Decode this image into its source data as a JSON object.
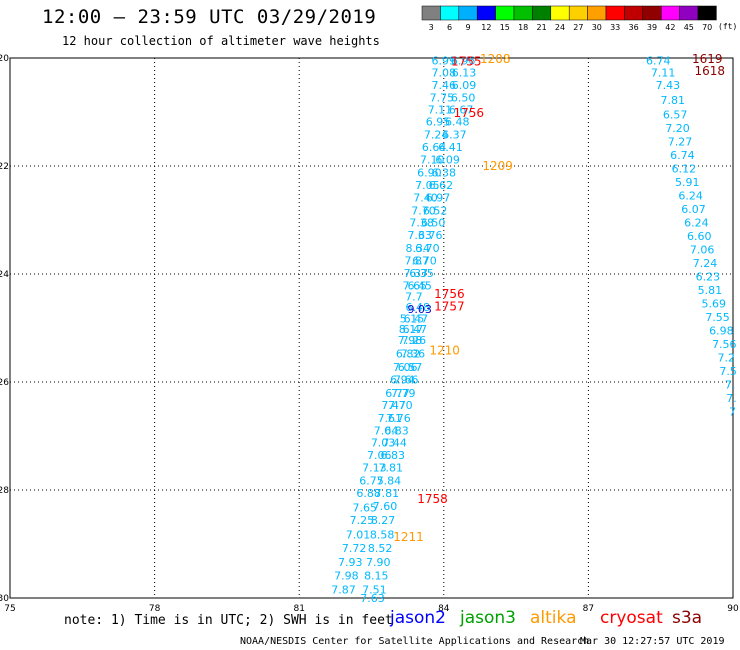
{
  "header": {
    "title": "12:00 – 23:59 UTC 03/29/2019",
    "subtitle": "12 hour collection of altimeter wave heights"
  },
  "colorbar": {
    "labels": [
      "3",
      "6",
      "9",
      "12",
      "15",
      "18",
      "21",
      "24",
      "27",
      "30",
      "33",
      "36",
      "39",
      "42",
      "45",
      "70"
    ],
    "unit": "(ft)",
    "colors": [
      "#808080",
      "#00ffff",
      "#00b0ff",
      "#0000ff",
      "#00ff00",
      "#00c000",
      "#008000",
      "#ffff00",
      "#ffd000",
      "#ffa000",
      "#ff0000",
      "#c00000",
      "#900000",
      "#ff00ff",
      "#9000c0",
      "#000000"
    ]
  },
  "chart_data": {
    "type": "scatter",
    "xlim": [
      75,
      90
    ],
    "ylim": [
      -30,
      -20
    ],
    "xticks": [
      "75",
      "78",
      "81",
      "84",
      "87",
      "90"
    ],
    "yticks": [
      "-20",
      "-22",
      "-24",
      "-26",
      "-28",
      "-30"
    ],
    "grid": true,
    "colors": {
      "jason2": "#0000ff",
      "jason3": "#00a000",
      "altika": "#ff9900",
      "cryosat": "#ff0000",
      "s3a": "#8b0000",
      "swh": "#00b8ff"
    },
    "swh_points": [
      {
        "x": 84.0,
        "y": -20.05,
        "v": "6.99"
      },
      {
        "x": 84.0,
        "y": -20.27,
        "v": "7.08"
      },
      {
        "x": 84.0,
        "y": -20.5,
        "v": "7.46"
      },
      {
        "x": 83.96,
        "y": -20.73,
        "v": "7.75"
      },
      {
        "x": 83.92,
        "y": -20.95,
        "v": "7.11"
      },
      {
        "x": 83.88,
        "y": -21.18,
        "v": "6.95"
      },
      {
        "x": 83.84,
        "y": -21.42,
        "v": "7.24"
      },
      {
        "x": 83.8,
        "y": -21.65,
        "v": "6.64"
      },
      {
        "x": 83.76,
        "y": -21.88,
        "v": "7.10"
      },
      {
        "x": 83.7,
        "y": -22.12,
        "v": "6.90"
      },
      {
        "x": 83.66,
        "y": -22.35,
        "v": "7.05"
      },
      {
        "x": 83.62,
        "y": -22.58,
        "v": "7.40"
      },
      {
        "x": 83.58,
        "y": -22.82,
        "v": "7.70"
      },
      {
        "x": 83.54,
        "y": -23.05,
        "v": "7.38"
      },
      {
        "x": 83.5,
        "y": -23.28,
        "v": "7.33"
      },
      {
        "x": 83.46,
        "y": -23.52,
        "v": "8.34"
      },
      {
        "x": 83.44,
        "y": -23.75,
        "v": "7.87"
      },
      {
        "x": 83.42,
        "y": -23.98,
        "v": "7.37"
      },
      {
        "x": 83.4,
        "y": -24.21,
        "v": "7.65"
      },
      {
        "x": 83.38,
        "y": -24.42,
        "v": "7.7"
      },
      {
        "x": 83.34,
        "y": -24.82,
        "v": "5.15"
      },
      {
        "x": 83.32,
        "y": -25.02,
        "v": "8.17"
      },
      {
        "x": 83.3,
        "y": -25.22,
        "v": "7.98"
      },
      {
        "x": 83.26,
        "y": -25.47,
        "v": "6.82"
      },
      {
        "x": 83.2,
        "y": -25.72,
        "v": "7.06"
      },
      {
        "x": 83.14,
        "y": -25.95,
        "v": "6.94"
      },
      {
        "x": 83.04,
        "y": -26.2,
        "v": "6.77"
      },
      {
        "x": 82.96,
        "y": -26.43,
        "v": "7.47"
      },
      {
        "x": 82.88,
        "y": -26.67,
        "v": "7.61"
      },
      {
        "x": 82.8,
        "y": -26.9,
        "v": "7.04"
      },
      {
        "x": 82.74,
        "y": -27.12,
        "v": "7.03"
      },
      {
        "x": 82.66,
        "y": -27.35,
        "v": "7.06"
      },
      {
        "x": 82.56,
        "y": -27.58,
        "v": "7.13"
      },
      {
        "x": 82.5,
        "y": -27.82,
        "v": "6.75"
      },
      {
        "x": 82.44,
        "y": -28.06,
        "v": "6.88"
      },
      {
        "x": 82.36,
        "y": -28.32,
        "v": "7.65"
      },
      {
        "x": 82.3,
        "y": -28.56,
        "v": "7.25"
      },
      {
        "x": 82.22,
        "y": -28.82,
        "v": "7.01"
      },
      {
        "x": 82.14,
        "y": -29.07,
        "v": "7.72"
      },
      {
        "x": 82.06,
        "y": -29.33,
        "v": "7.93"
      },
      {
        "x": 81.98,
        "y": -29.58,
        "v": "7.98"
      },
      {
        "x": 81.92,
        "y": -29.84,
        "v": "7.87"
      },
      {
        "x": 84.4,
        "y": -20.05,
        "v": "6.96"
      },
      {
        "x": 84.42,
        "y": -20.27,
        "v": "6.13"
      },
      {
        "x": 84.42,
        "y": -20.5,
        "v": "6.09"
      },
      {
        "x": 84.4,
        "y": -20.73,
        "v": "6.50"
      },
      {
        "x": 84.36,
        "y": -20.95,
        "v": "6.67"
      },
      {
        "x": 84.28,
        "y": -21.18,
        "v": "6.48"
      },
      {
        "x": 84.22,
        "y": -21.42,
        "v": "6.37"
      },
      {
        "x": 84.14,
        "y": -21.65,
        "v": "6.41"
      },
      {
        "x": 84.08,
        "y": -21.88,
        "v": "6.09"
      },
      {
        "x": 84.0,
        "y": -22.12,
        "v": "6.38"
      },
      {
        "x": 83.94,
        "y": -22.35,
        "v": "6.62"
      },
      {
        "x": 83.88,
        "y": -22.58,
        "v": "6.97"
      },
      {
        "x": 83.82,
        "y": -22.82,
        "v": "6.52"
      },
      {
        "x": 83.78,
        "y": -23.05,
        "v": "6.50"
      },
      {
        "x": 83.72,
        "y": -23.28,
        "v": "6.76"
      },
      {
        "x": 83.66,
        "y": -23.52,
        "v": "6.70"
      },
      {
        "x": 83.6,
        "y": -23.75,
        "v": "6.70"
      },
      {
        "x": 83.54,
        "y": -23.98,
        "v": "6.35"
      },
      {
        "x": 83.5,
        "y": -24.21,
        "v": "6.45"
      },
      {
        "x": 83.46,
        "y": -24.61,
        "v": "6.48"
      },
      {
        "x": 83.42,
        "y": -24.82,
        "v": "6.47"
      },
      {
        "x": 83.4,
        "y": -25.02,
        "v": "6.47"
      },
      {
        "x": 83.38,
        "y": -25.22,
        "v": "7.26"
      },
      {
        "x": 83.36,
        "y": -25.47,
        "v": "7.36"
      },
      {
        "x": 83.3,
        "y": -25.72,
        "v": "6.57"
      },
      {
        "x": 83.22,
        "y": -25.95,
        "v": "7.66"
      },
      {
        "x": 83.16,
        "y": -26.2,
        "v": "7.79"
      },
      {
        "x": 83.1,
        "y": -26.43,
        "v": "7.70"
      },
      {
        "x": 83.06,
        "y": -26.67,
        "v": "7.76"
      },
      {
        "x": 83.02,
        "y": -26.9,
        "v": "6.83"
      },
      {
        "x": 82.98,
        "y": -27.12,
        "v": "7.44"
      },
      {
        "x": 82.94,
        "y": -27.35,
        "v": "6.83"
      },
      {
        "x": 82.9,
        "y": -27.58,
        "v": "7.81"
      },
      {
        "x": 82.86,
        "y": -27.82,
        "v": "7.84"
      },
      {
        "x": 82.82,
        "y": -28.06,
        "v": "7.81"
      },
      {
        "x": 82.78,
        "y": -28.3,
        "v": "7.60"
      },
      {
        "x": 82.74,
        "y": -28.56,
        "v": "8.27"
      },
      {
        "x": 82.72,
        "y": -28.82,
        "v": "8.58"
      },
      {
        "x": 82.68,
        "y": -29.07,
        "v": "8.52"
      },
      {
        "x": 82.64,
        "y": -29.33,
        "v": "7.90"
      },
      {
        "x": 82.6,
        "y": -29.58,
        "v": "8.15"
      },
      {
        "x": 82.56,
        "y": -29.84,
        "v": "7.51"
      },
      {
        "x": 82.52,
        "y": -30.0,
        "v": "7.63"
      },
      {
        "x": 88.45,
        "y": -20.05,
        "v": "6.74"
      },
      {
        "x": 88.55,
        "y": -20.27,
        "v": "7.11"
      },
      {
        "x": 88.65,
        "y": -20.5,
        "v": "7.43"
      },
      {
        "x": 88.75,
        "y": -20.78,
        "v": "7.81"
      },
      {
        "x": 88.8,
        "y": -21.05,
        "v": "6.57"
      },
      {
        "x": 88.85,
        "y": -21.3,
        "v": "7.20"
      },
      {
        "x": 88.9,
        "y": -21.55,
        "v": "7.27"
      },
      {
        "x": 88.95,
        "y": -21.8,
        "v": "6.74"
      },
      {
        "x": 88.98,
        "y": -22.05,
        "v": "6.12"
      },
      {
        "x": 89.05,
        "y": -22.3,
        "v": "5.91"
      },
      {
        "x": 89.12,
        "y": -22.55,
        "v": "6.24"
      },
      {
        "x": 89.18,
        "y": -22.8,
        "v": "6.07"
      },
      {
        "x": 89.24,
        "y": -23.05,
        "v": "6.24"
      },
      {
        "x": 89.3,
        "y": -23.3,
        "v": "6.60"
      },
      {
        "x": 89.36,
        "y": -23.55,
        "v": "7.06"
      },
      {
        "x": 89.42,
        "y": -23.8,
        "v": "7.24"
      },
      {
        "x": 89.48,
        "y": -24.05,
        "v": "6.23"
      },
      {
        "x": 89.52,
        "y": -24.3,
        "v": "5.81"
      },
      {
        "x": 89.6,
        "y": -24.55,
        "v": "5.69"
      },
      {
        "x": 89.68,
        "y": -24.8,
        "v": "7.55"
      },
      {
        "x": 89.76,
        "y": -25.05,
        "v": "6.98"
      },
      {
        "x": 89.82,
        "y": -25.3,
        "v": "7.56"
      },
      {
        "x": 89.86,
        "y": -25.55,
        "v": "7.2"
      },
      {
        "x": 89.9,
        "y": -25.8,
        "v": "7.5"
      },
      {
        "x": 89.94,
        "y": -26.05,
        "v": "7."
      },
      {
        "x": 89.97,
        "y": -26.3,
        "v": "7."
      },
      {
        "x": 89.99,
        "y": -26.55,
        "v": "7"
      }
    ],
    "blue_points": [
      {
        "x": 83.5,
        "y": -24.65,
        "v": "9.03"
      }
    ],
    "time_labels": [
      {
        "x": 84.15,
        "y": -20.05,
        "v": "1755",
        "sat": "cryosat"
      },
      {
        "x": 84.75,
        "y": -20.0,
        "v": "1208",
        "sat": "altika"
      },
      {
        "x": 84.2,
        "y": -21.0,
        "v": "1756",
        "sat": "cryosat"
      },
      {
        "x": 84.8,
        "y": -21.98,
        "v": "1209",
        "sat": "altika"
      },
      {
        "x": 83.8,
        "y": -24.35,
        "v": "1756",
        "sat": "cryosat"
      },
      {
        "x": 83.8,
        "y": -24.58,
        "v": "1757",
        "sat": "cryosat"
      },
      {
        "x": 83.7,
        "y": -25.4,
        "v": "1210",
        "sat": "altika"
      },
      {
        "x": 83.45,
        "y": -28.15,
        "v": "1758",
        "sat": "cryosat"
      },
      {
        "x": 82.95,
        "y": -28.85,
        "v": "1211",
        "sat": "altika"
      },
      {
        "x": 89.15,
        "y": -20.0,
        "v": "1619",
        "sat": "s3a"
      },
      {
        "x": 89.2,
        "y": -20.22,
        "v": "1618",
        "sat": "s3a"
      }
    ]
  },
  "notes": {
    "note": "note: 1) Time is in UTC; 2) SWH is in feet",
    "credit": "NOAA/NESDIS Center for Satellite Applications and Research",
    "timestamp": "Mar 30 12:27:57 UTC 2019"
  },
  "satellites": [
    {
      "name": "jason2",
      "color": "#0000ff"
    },
    {
      "name": "jason3",
      "color": "#00a000"
    },
    {
      "name": "altika",
      "color": "#ff9900"
    },
    {
      "name": "cryosat",
      "color": "#ff0000"
    },
    {
      "name": "s3a",
      "color": "#8b0000"
    }
  ]
}
